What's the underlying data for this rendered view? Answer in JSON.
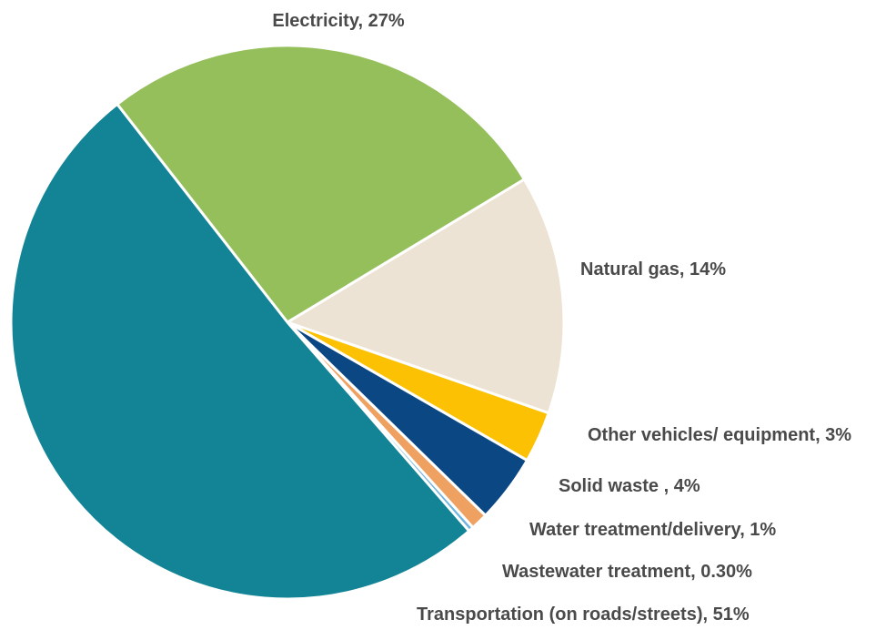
{
  "chart_data": {
    "type": "pie",
    "title": "",
    "slices": [
      {
        "label": "Electricity, 27%",
        "value": 27,
        "color": "#94bf5a"
      },
      {
        "label": "Natural gas, 14%",
        "value": 14,
        "color": "#ede3d4"
      },
      {
        "label": "Other vehicles/ equipment, 3%",
        "value": 3,
        "color": "#fcc102"
      },
      {
        "label": "Solid waste , 4%",
        "value": 4,
        "color": "#0b4783"
      },
      {
        "label": "Water treatment/delivery, 1%",
        "value": 1,
        "color": "#eea160"
      },
      {
        "label": "Wastewater treatment, 0.30%",
        "value": 0.3,
        "color": "#6fb3e1"
      },
      {
        "label": "Transportation (on roads/streets), 51%",
        "value": 51,
        "color": "#128496"
      }
    ],
    "legend": "none"
  }
}
